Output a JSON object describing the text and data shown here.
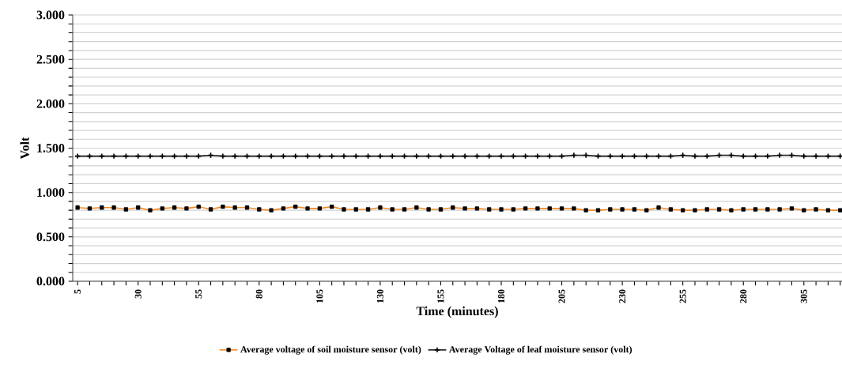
{
  "chart_data": {
    "type": "line",
    "xlabel": "Time (minutes)",
    "ylabel": "Volt",
    "categories": [
      "5",
      null,
      null,
      null,
      null,
      "30",
      null,
      null,
      null,
      null,
      "55",
      null,
      null,
      null,
      null,
      "80",
      null,
      null,
      null,
      null,
      "105",
      null,
      null,
      null,
      null,
      "130",
      null,
      null,
      null,
      null,
      "155",
      null,
      null,
      null,
      null,
      "180",
      null,
      null,
      null,
      null,
      "205",
      null,
      null,
      null,
      null,
      "230",
      null,
      null,
      null,
      null,
      "255",
      null,
      null,
      null,
      null,
      "280",
      null,
      null,
      null,
      null,
      "305",
      null,
      null,
      null
    ],
    "series": [
      {
        "name": "Average voltage of soil moisture sensor (volt)",
        "color": "#f28c28",
        "marker": "square",
        "values": [
          0.83,
          0.82,
          0.83,
          0.83,
          0.81,
          0.83,
          0.8,
          0.82,
          0.83,
          0.82,
          0.84,
          0.81,
          0.84,
          0.83,
          0.83,
          0.81,
          0.8,
          0.82,
          0.84,
          0.82,
          0.82,
          0.84,
          0.81,
          0.81,
          0.81,
          0.83,
          0.81,
          0.81,
          0.83,
          0.81,
          0.81,
          0.83,
          0.82,
          0.82,
          0.81,
          0.81,
          0.81,
          0.82,
          0.82,
          0.82,
          0.82,
          0.82,
          0.8,
          0.8,
          0.81,
          0.81,
          0.81,
          0.8,
          0.83,
          0.81,
          0.8,
          0.8,
          0.81,
          0.81,
          0.8,
          0.81,
          0.81,
          0.81,
          0.81,
          0.82,
          0.8,
          0.81,
          0.8,
          0.8
        ]
      },
      {
        "name": "Average Voltage of leaf moisture sensor (volt)",
        "color": "#1a1a1a",
        "marker": "cross",
        "values": [
          1.41,
          1.41,
          1.41,
          1.41,
          1.41,
          1.41,
          1.41,
          1.41,
          1.41,
          1.41,
          1.41,
          1.42,
          1.41,
          1.41,
          1.41,
          1.41,
          1.41,
          1.41,
          1.41,
          1.41,
          1.41,
          1.41,
          1.41,
          1.41,
          1.41,
          1.41,
          1.41,
          1.41,
          1.41,
          1.41,
          1.41,
          1.41,
          1.41,
          1.41,
          1.41,
          1.41,
          1.41,
          1.41,
          1.41,
          1.41,
          1.41,
          1.42,
          1.42,
          1.41,
          1.41,
          1.41,
          1.41,
          1.41,
          1.41,
          1.41,
          1.42,
          1.41,
          1.41,
          1.42,
          1.42,
          1.41,
          1.41,
          1.41,
          1.42,
          1.42,
          1.41,
          1.41,
          1.41,
          1.41
        ]
      }
    ],
    "ylim": [
      0,
      3
    ],
    "yticks": [
      {
        "value": 0,
        "label": "0.000"
      },
      {
        "value": 0.1,
        "label": null
      },
      {
        "value": 0.2,
        "label": null
      },
      {
        "value": 0.3,
        "label": null
      },
      {
        "value": 0.4,
        "label": null
      },
      {
        "value": 0.5,
        "label": "0.500"
      },
      {
        "value": 0.6,
        "label": null
      },
      {
        "value": 0.7,
        "label": null
      },
      {
        "value": 0.8,
        "label": null
      },
      {
        "value": 0.9,
        "label": null
      },
      {
        "value": 1,
        "label": "1.000"
      },
      {
        "value": 1.1,
        "label": null
      },
      {
        "value": 1.2,
        "label": null
      },
      {
        "value": 1.3,
        "label": null
      },
      {
        "value": 1.4,
        "label": null
      },
      {
        "value": 1.5,
        "label": "1.500"
      },
      {
        "value": 1.6,
        "label": null
      },
      {
        "value": 1.7,
        "label": null
      },
      {
        "value": 1.8,
        "label": null
      },
      {
        "value": 1.9,
        "label": null
      },
      {
        "value": 2,
        "label": "2.000"
      },
      {
        "value": 2.1,
        "label": null
      },
      {
        "value": 2.2,
        "label": null
      },
      {
        "value": 2.3,
        "label": null
      },
      {
        "value": 2.4,
        "label": null
      },
      {
        "value": 2.5,
        "label": "2.500"
      },
      {
        "value": 2.6,
        "label": null
      },
      {
        "value": 2.7,
        "label": null
      },
      {
        "value": 2.8,
        "label": null
      },
      {
        "value": 2.9,
        "label": null
      },
      {
        "value": 3,
        "label": "3.000"
      }
    ],
    "grid": "y",
    "legend": "bottom"
  }
}
